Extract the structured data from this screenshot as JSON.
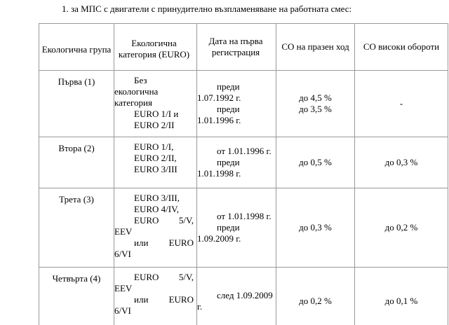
{
  "heading": "1. за МПС с двигатели с принудително възпламеняване на работната смес:",
  "table": {
    "header": [
      [
        "Екологична група"
      ],
      [
        "Екологична",
        "категория (EURO)"
      ],
      [
        "Дата на първа",
        "регистрация"
      ],
      [
        "CO на празен ход"
      ],
      [
        "CO високи обороти"
      ]
    ],
    "rows": [
      [
        [
          "Първа (1)"
        ],
        [
          "Без",
          "екологична",
          "категория",
          "EURO 1/I и",
          "EURO 2/II"
        ],
        [
          "преди",
          "1.07.1992 г.",
          "преди",
          "1.01.1996 г."
        ],
        [
          "до 4,5 %",
          "до 3,5 %"
        ],
        [
          "-"
        ]
      ],
      [
        [
          "Втора (2)"
        ],
        [
          "EURO 1/I,",
          "EURO 2/II,",
          "EURO 3/III"
        ],
        [
          "от 1.01.1996 г.",
          "преди",
          "1.01.1998 г."
        ],
        [
          "до 0,5 %"
        ],
        [
          "до 0,3 %"
        ]
      ],
      [
        [
          "Трета (3)"
        ],
        [
          "EURO 3/III,",
          "EURO 4/IV,",
          "EURO 5/V,",
          "EEV",
          "или EURO",
          "6/VI"
        ],
        [
          "от 1.01.1998 г.",
          "преди",
          "1.09.2009 г."
        ],
        [
          "до 0,3 %"
        ],
        [
          "до 0,2 %"
        ]
      ],
      [
        [
          "Четвърта (4)"
        ],
        [
          "EURO 5/V,",
          "EEV",
          "или EURO",
          "6/VI"
        ],
        [
          "след 1.09.2009",
          "г."
        ],
        [
          "до 0,2 %"
        ],
        [
          "до 0,1 %"
        ]
      ]
    ]
  }
}
